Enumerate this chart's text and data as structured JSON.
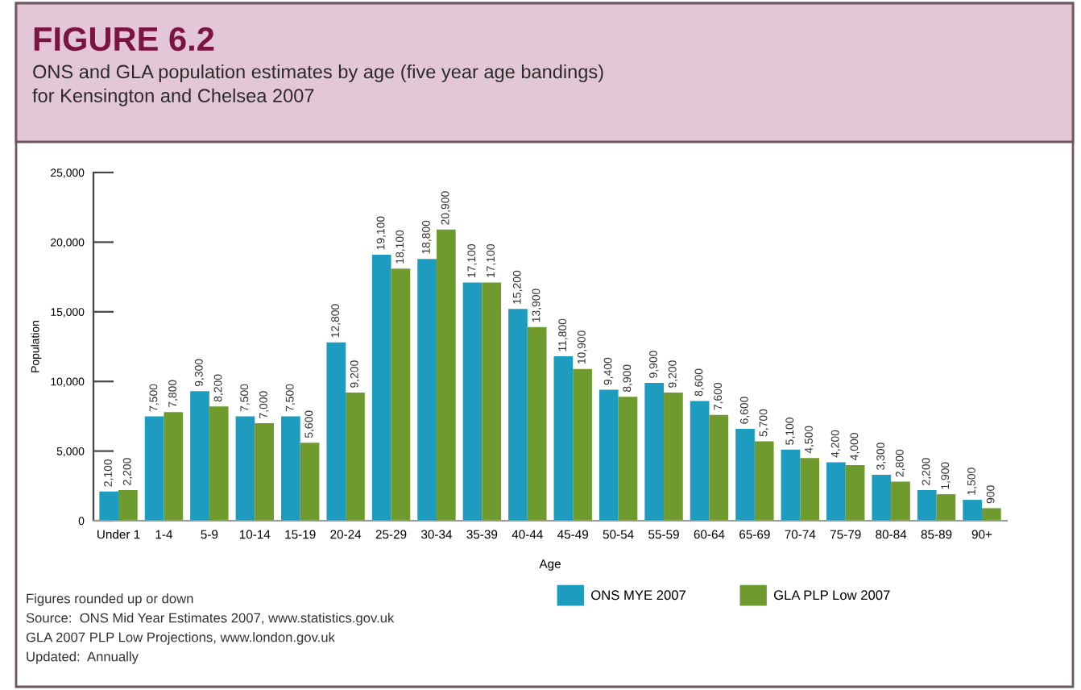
{
  "chart_data": {
    "type": "bar",
    "title": "FIGURE 6.2",
    "subtitle": "ONS and GLA population estimates by age (five year age bandings)\nfor Kensington and Chelsea 2007",
    "xlabel": "Age",
    "ylabel": "Population",
    "categories": [
      "Under 1",
      "1-4",
      "5-9",
      "10-14",
      "15-19",
      "20-24",
      "25-29",
      "30-34",
      "35-39",
      "40-44",
      "45-49",
      "50-54",
      "55-59",
      "60-64",
      "65-69",
      "70-74",
      "75-79",
      "80-84",
      "85-89",
      "90+"
    ],
    "series": [
      {
        "name": "ONS MYE 2007",
        "color": "#1e9cc0",
        "values": [
          2100,
          7500,
          9300,
          7500,
          7500,
          12800,
          19100,
          18800,
          17100,
          15200,
          11800,
          9400,
          9900,
          8600,
          6600,
          5100,
          4200,
          3300,
          2200,
          1500
        ],
        "value_labels": [
          "2,100",
          "7,500",
          "9,300",
          "7,500",
          "7,500",
          "12,800",
          "19,100",
          "18,800",
          "17,100",
          "15,200",
          "11,800",
          "9,400",
          "9,900",
          "8,600",
          "6,600",
          "5,100",
          "4,200",
          "3,300",
          "2,200",
          "1,500"
        ]
      },
      {
        "name": "GLA PLP Low 2007",
        "color": "#6f9a2d",
        "values": [
          2200,
          7800,
          8200,
          7000,
          5600,
          9200,
          18100,
          20900,
          17100,
          13900,
          10900,
          8900,
          9200,
          7600,
          5700,
          4500,
          4000,
          2800,
          1900,
          900
        ],
        "value_labels": [
          "2,200",
          "7,800",
          "8,200",
          "7,000",
          "5,600",
          "9,200",
          "18,100",
          "20,900",
          "17,100",
          "13,900",
          "10,900",
          "8,900",
          "9,200",
          "7,600",
          "5,700",
          "4,500",
          "4,000",
          "2,800",
          "1,900",
          "900"
        ]
      }
    ],
    "ylim": [
      0,
      25000
    ],
    "yticks": [
      {
        "value": 0,
        "label": "0"
      },
      {
        "value": 5000,
        "label": "5,000"
      },
      {
        "value": 10000,
        "label": "10,000"
      },
      {
        "value": 15000,
        "label": "15,000"
      },
      {
        "value": 20000,
        "label": "20,000"
      },
      {
        "value": 25000,
        "label": "25,000"
      }
    ],
    "legend": "bottom",
    "annotations": [
      "Figures rounded up or down",
      "Source:  ONS Mid Year Estimates 2007, www.statistics.gov.uk",
      "GLA 2007 PLP Low Projections, www.london.gov.uk",
      "Updated:  Annually"
    ]
  }
}
